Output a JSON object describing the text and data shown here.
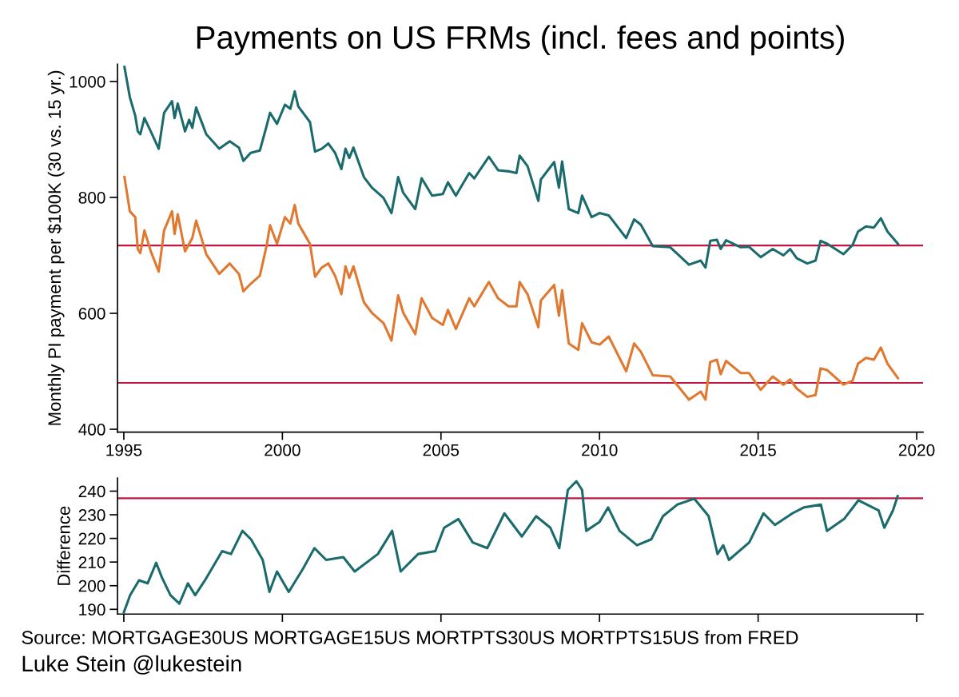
{
  "chart_data": [
    {
      "type": "line",
      "title": "Payments on US FRMs (incl. fees and points)",
      "ylabel": "Monthly PI payment per $100K (30 vs. 15 yr.)",
      "xlim": [
        1994.8,
        2020.2
      ],
      "xticks": [
        1995,
        2000,
        2005,
        2010,
        2015,
        2020
      ],
      "ylim": [
        395,
        1030
      ],
      "yticks": [
        400,
        600,
        800,
        1000
      ],
      "grid": false,
      "ref_lines": [
        {
          "axis": "y",
          "value": 717,
          "color": "#c0163f"
        },
        {
          "axis": "y",
          "value": 480,
          "color": "#c0163f"
        }
      ],
      "series": [
        {
          "color": "#1b6b6d",
          "x": [
            1995.02,
            1995.19,
            1995.36,
            1995.44,
            1995.52,
            1995.65,
            1995.85,
            1996.1,
            1996.27,
            1996.52,
            1996.6,
            1996.7,
            1996.93,
            1997.06,
            1997.16,
            1997.28,
            1997.6,
            1998.01,
            1998.34,
            1998.63,
            1998.77,
            1999.0,
            1999.29,
            1999.5,
            1999.61,
            1999.83,
            2000.08,
            2000.25,
            2000.39,
            2000.5,
            2000.87,
            2001.03,
            2001.24,
            2001.45,
            2001.66,
            2001.86,
            2001.99,
            2002.11,
            2002.24,
            2002.57,
            2002.82,
            2003.19,
            2003.44,
            2003.65,
            2003.81,
            2004.19,
            2004.39,
            2004.72,
            2005.06,
            2005.22,
            2005.47,
            2005.89,
            2006.05,
            2006.51,
            2006.8,
            2007.13,
            2007.38,
            2007.48,
            2007.73,
            2008.07,
            2008.15,
            2008.57,
            2008.72,
            2008.82,
            2009.03,
            2009.33,
            2009.45,
            2009.75,
            2010.0,
            2010.29,
            2010.84,
            2011.09,
            2011.3,
            2011.68,
            2012.23,
            2012.82,
            2013.19,
            2013.34,
            2013.49,
            2013.7,
            2013.82,
            2013.99,
            2014.45,
            2014.71,
            2015.08,
            2015.46,
            2015.8,
            2016.01,
            2016.22,
            2016.55,
            2016.81,
            2016.97,
            2017.18,
            2017.69,
            2017.98,
            2018.15,
            2018.4,
            2018.65,
            2018.87,
            2019.08,
            2019.41
          ],
          "values": [
            1025,
            973,
            941,
            914,
            909,
            937,
            914,
            884,
            946,
            966,
            937,
            962,
            914,
            934,
            920,
            955,
            909,
            884,
            897,
            886,
            863,
            877,
            881,
            923,
            946,
            927,
            960,
            953,
            983,
            957,
            930,
            879,
            884,
            893,
            877,
            849,
            884,
            868,
            886,
            835,
            817,
            799,
            773,
            835,
            808,
            780,
            833,
            803,
            806,
            826,
            803,
            842,
            833,
            870,
            847,
            845,
            842,
            872,
            854,
            794,
            831,
            861,
            817,
            862,
            780,
            773,
            803,
            766,
            773,
            769,
            730,
            762,
            753,
            716,
            714,
            684,
            691,
            679,
            725,
            727,
            711,
            726,
            714,
            715,
            697,
            711,
            700,
            711,
            695,
            686,
            691,
            725,
            720,
            702,
            718,
            741,
            750,
            748,
            764,
            741,
            720
          ]
        },
        {
          "color": "#e0782f",
          "x": [
            1995.02,
            1995.19,
            1995.36,
            1995.44,
            1995.52,
            1995.65,
            1995.85,
            1996.1,
            1996.27,
            1996.52,
            1996.6,
            1996.7,
            1996.93,
            1997.16,
            1997.28,
            1997.6,
            1998.01,
            1998.34,
            1998.63,
            1998.77,
            1999.0,
            1999.29,
            1999.5,
            1999.61,
            1999.83,
            2000.08,
            2000.25,
            2000.39,
            2000.5,
            2000.87,
            2001.03,
            2001.24,
            2001.45,
            2001.66,
            2001.86,
            2001.99,
            2002.11,
            2002.24,
            2002.57,
            2002.82,
            2003.19,
            2003.44,
            2003.65,
            2003.81,
            2004.19,
            2004.39,
            2004.72,
            2005.06,
            2005.22,
            2005.47,
            2005.89,
            2006.05,
            2006.51,
            2006.8,
            2007.13,
            2007.38,
            2007.48,
            2007.73,
            2008.07,
            2008.15,
            2008.57,
            2008.72,
            2008.82,
            2009.03,
            2009.33,
            2009.45,
            2009.75,
            2010.0,
            2010.29,
            2010.84,
            2011.09,
            2011.3,
            2011.68,
            2012.23,
            2012.82,
            2013.19,
            2013.34,
            2013.49,
            2013.7,
            2013.82,
            2013.99,
            2014.45,
            2014.71,
            2015.08,
            2015.46,
            2015.8,
            2016.01,
            2016.22,
            2016.55,
            2016.81,
            2016.97,
            2017.18,
            2017.69,
            2017.98,
            2018.15,
            2018.4,
            2018.65,
            2018.87,
            2019.08,
            2019.41
          ],
          "values": [
            835,
            776,
            766,
            711,
            704,
            743,
            707,
            672,
            743,
            776,
            737,
            771,
            707,
            730,
            760,
            702,
            668,
            686,
            668,
            638,
            651,
            665,
            716,
            752,
            720,
            766,
            755,
            787,
            755,
            720,
            663,
            679,
            686,
            665,
            633,
            681,
            661,
            681,
            619,
            601,
            583,
            553,
            631,
            601,
            564,
            626,
            592,
            580,
            606,
            573,
            626,
            612,
            654,
            626,
            612,
            612,
            654,
            633,
            576,
            622,
            649,
            596,
            640,
            548,
            537,
            583,
            550,
            546,
            560,
            500,
            548,
            534,
            493,
            491,
            451,
            465,
            451,
            516,
            520,
            495,
            518,
            497,
            497,
            468,
            491,
            477,
            486,
            470,
            456,
            459,
            505,
            502,
            477,
            484,
            513,
            523,
            520,
            541,
            513,
            488
          ]
        }
      ]
    },
    {
      "type": "line",
      "ylabel": "Difference",
      "xlim": [
        1994.8,
        2020.2
      ],
      "xticks": [
        1995,
        2000,
        2005,
        2010,
        2015,
        2020
      ],
      "ylim": [
        188,
        245.5
      ],
      "yticks": [
        190,
        200,
        210,
        220,
        230,
        240
      ],
      "tick_labels": "y",
      "grid": false,
      "ref_lines": [
        {
          "axis": "y",
          "value": 237,
          "color": "#c0163f"
        }
      ],
      "annotations": [
        "Source: MORTGAGE30US MORTGAGE15US MORTPTS30US MORTPTS15US from FRED",
        "Luke Stein @lukestein"
      ],
      "series": [
        {
          "color": "#1b6b6d",
          "x": [
            1995.0,
            1995.2,
            1995.48,
            1995.75,
            1996.02,
            1996.2,
            1996.47,
            1996.75,
            1997.02,
            1997.25,
            1997.56,
            1998.1,
            1998.38,
            1998.74,
            1999.01,
            1999.38,
            1999.59,
            1999.83,
            2000.2,
            2000.65,
            2001.01,
            2001.38,
            2001.92,
            2002.28,
            2003.01,
            2003.46,
            2003.73,
            2004.28,
            2004.82,
            2005.1,
            2005.55,
            2006.0,
            2006.46,
            2007.0,
            2007.55,
            2008.0,
            2008.45,
            2008.73,
            2009.0,
            2009.27,
            2009.45,
            2009.58,
            2010.0,
            2010.27,
            2010.63,
            2011.18,
            2011.63,
            2012.0,
            2012.45,
            2012.99,
            2013.44,
            2013.72,
            2013.9,
            2014.08,
            2014.72,
            2015.17,
            2015.53,
            2016.08,
            2016.44,
            2016.98,
            2017.17,
            2017.71,
            2018.16,
            2018.8,
            2018.98,
            2019.25,
            2019.4
          ],
          "values": [
            188.7,
            196,
            202.3,
            201,
            209.7,
            203.5,
            196,
            192.4,
            201,
            196,
            202.3,
            214.6,
            213.4,
            223.2,
            219.6,
            210.9,
            197.4,
            206,
            197.4,
            207.2,
            215.9,
            210.9,
            212.1,
            206,
            213.4,
            223.2,
            206,
            213.4,
            214.6,
            224.5,
            228.2,
            218.3,
            215.9,
            230.6,
            220.8,
            229.4,
            224.5,
            215.9,
            240.5,
            244.2,
            240.5,
            223.2,
            227,
            233.1,
            223.2,
            217.1,
            219.6,
            229.4,
            234.3,
            236.8,
            229.4,
            213.4,
            217.1,
            210.9,
            218.3,
            230.6,
            225.7,
            230.6,
            233.1,
            234.3,
            223.2,
            228.2,
            236.1,
            231.8,
            224.5,
            231.8,
            237.9
          ]
        }
      ]
    }
  ]
}
